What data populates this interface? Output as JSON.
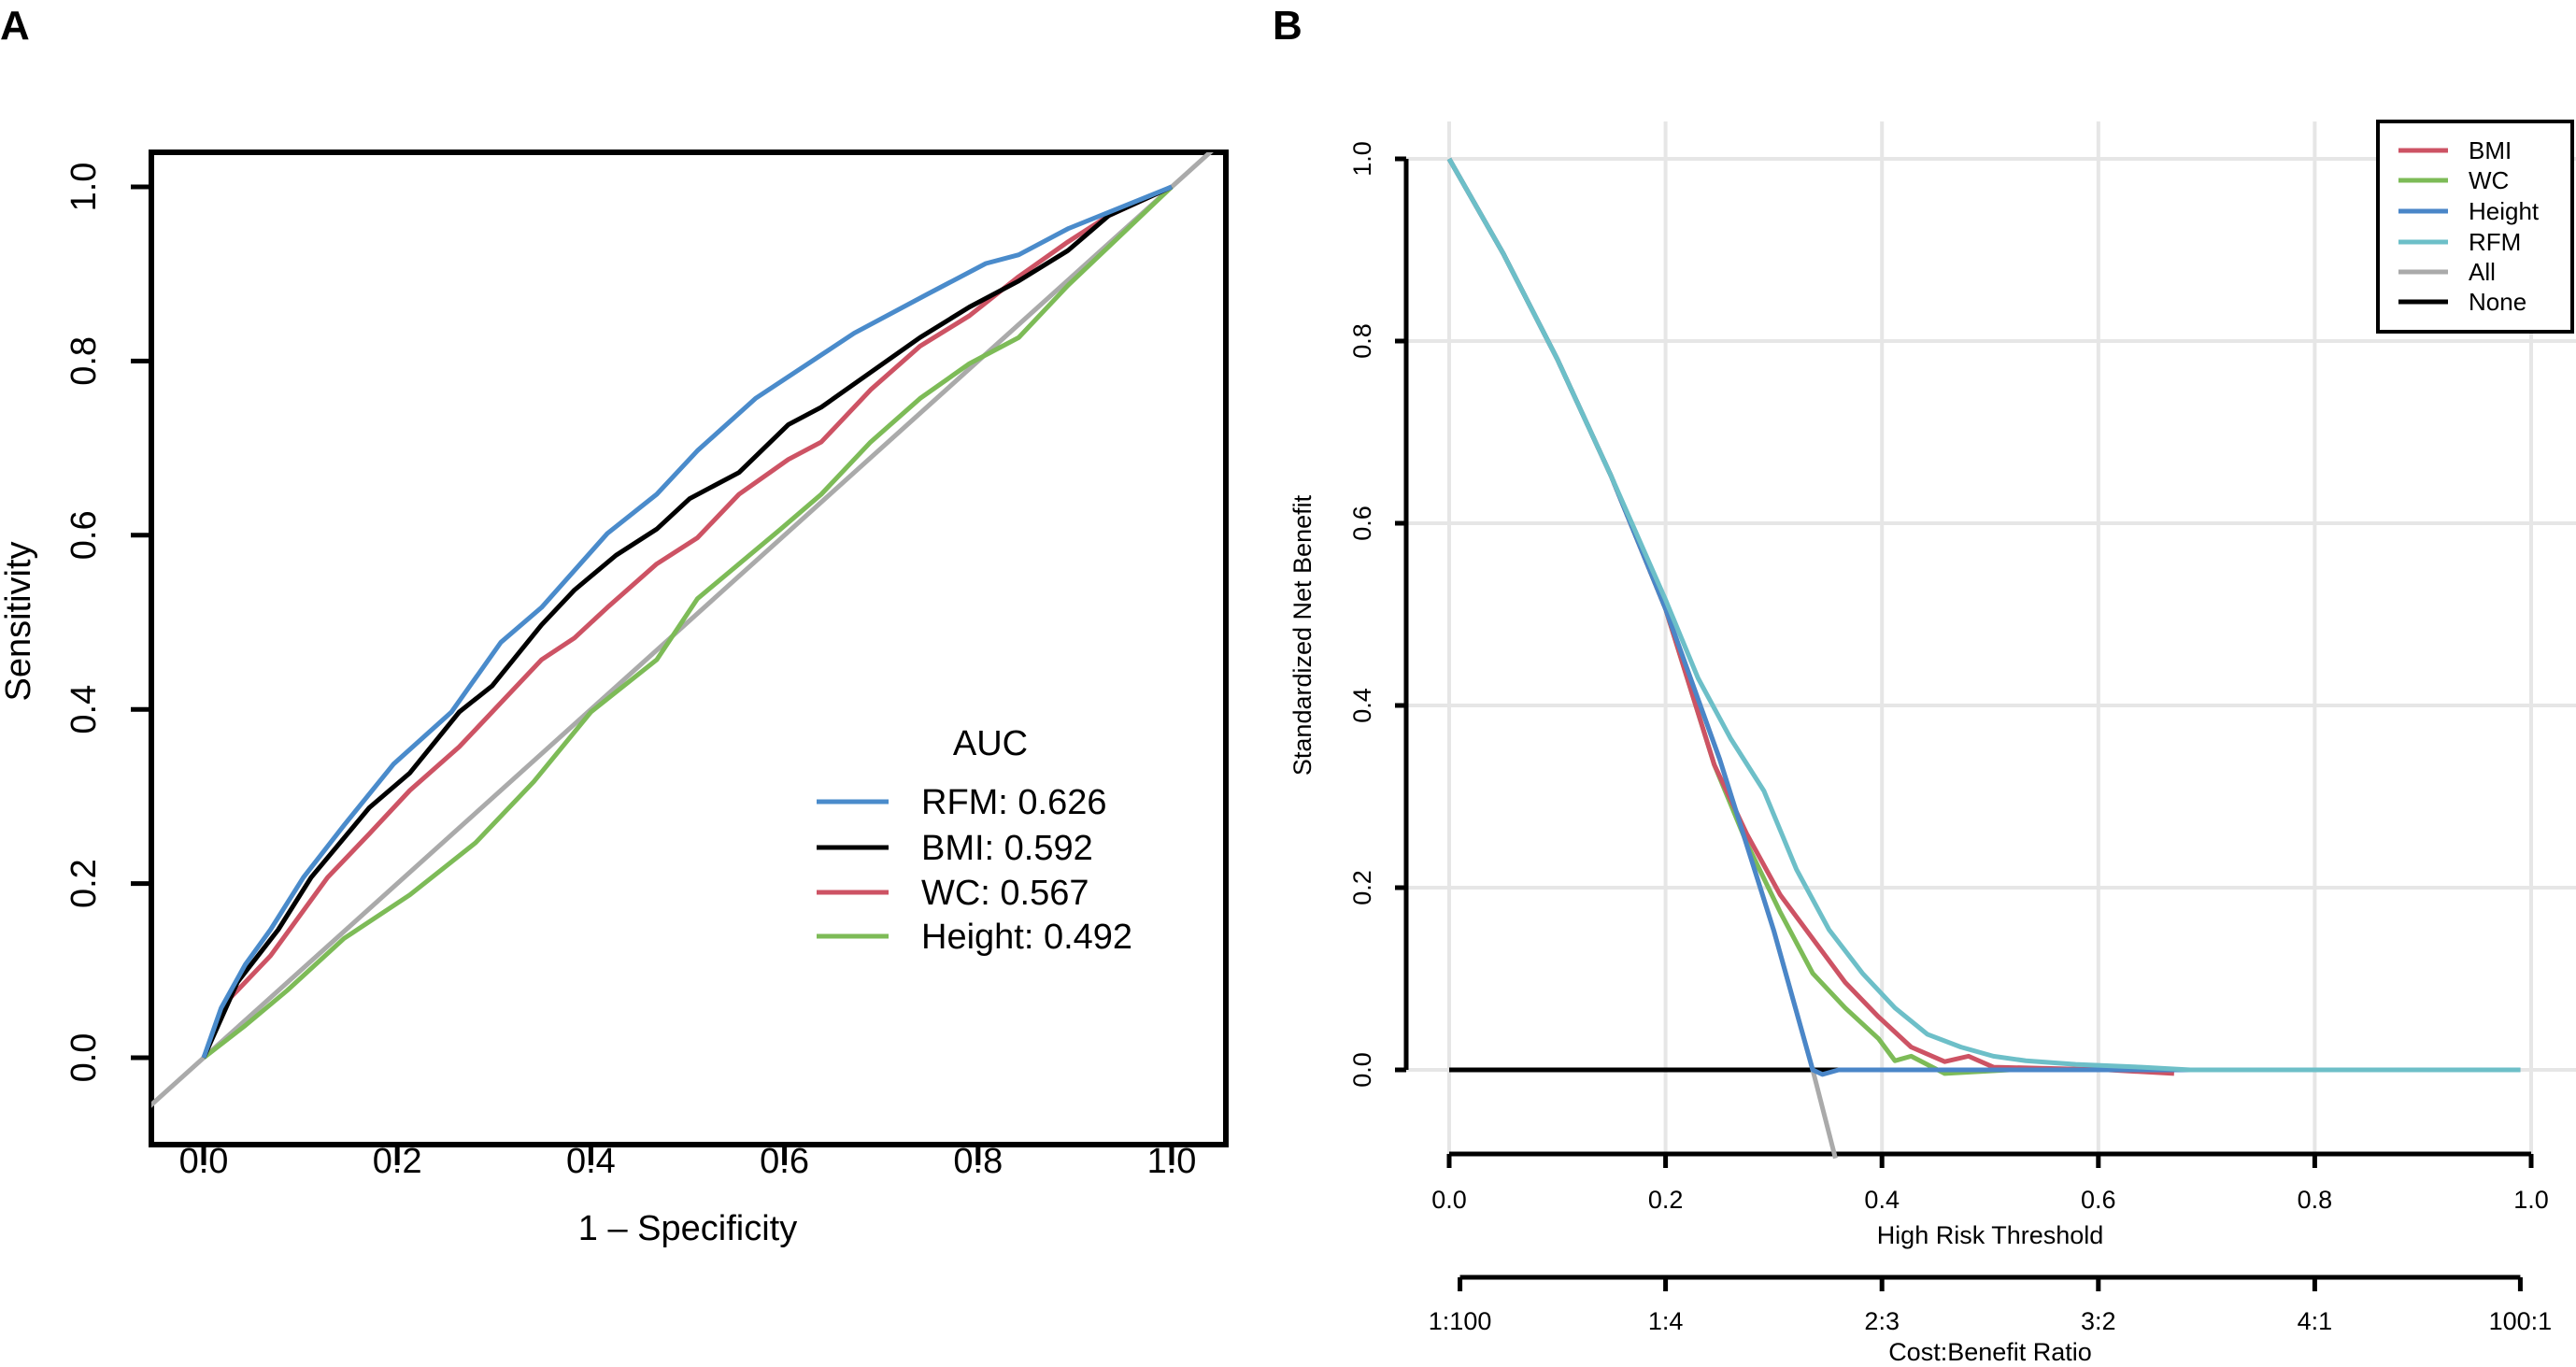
{
  "panels": {
    "a": "A",
    "b": "B"
  },
  "chart_data": [
    {
      "type": "line",
      "panel": "A",
      "xlabel": "1 – Specificity",
      "ylabel": "Sensitivity",
      "xlim": [
        0,
        1
      ],
      "ylim": [
        0,
        1
      ],
      "xticks": [
        "0.0",
        "0.2",
        "0.4",
        "0.6",
        "0.8",
        "1.0"
      ],
      "yticks": [
        "0.0",
        "0.2",
        "0.4",
        "0.6",
        "0.8",
        "1.0"
      ],
      "grid": false,
      "legend": {
        "title": "AUC",
        "placement": "bottom-right",
        "entries": [
          "RFM: 0.626",
          "BMI: 0.592",
          "WC: 0.567",
          "Height: 0.492"
        ]
      },
      "reference_line": {
        "type": "diagonal",
        "color": "#AAAAAA"
      },
      "series": [
        {
          "name": "RFM",
          "color": "#4A8BCB",
          "x": [
            0,
            0.018,
            0.043,
            0.069,
            0.103,
            0.145,
            0.196,
            0.256,
            0.307,
            0.349,
            0.417,
            0.468,
            0.51,
            0.57,
            0.638,
            0.672,
            0.748,
            0.808,
            0.842,
            0.893,
            1
          ],
          "y": [
            0,
            0.057,
            0.107,
            0.147,
            0.207,
            0.267,
            0.337,
            0.397,
            0.477,
            0.517,
            0.602,
            0.647,
            0.697,
            0.757,
            0.807,
            0.832,
            0.877,
            0.912,
            0.922,
            0.952,
            1
          ]
        },
        {
          "name": "BMI",
          "color": "#000000",
          "x": [
            0,
            0.035,
            0.077,
            0.111,
            0.171,
            0.213,
            0.264,
            0.298,
            0.349,
            0.383,
            0.426,
            0.468,
            0.502,
            0.553,
            0.604,
            0.638,
            0.689,
            0.74,
            0.791,
            0.842,
            0.893,
            0.935,
            1
          ],
          "y": [
            0,
            0.087,
            0.147,
            0.207,
            0.287,
            0.327,
            0.397,
            0.427,
            0.497,
            0.537,
            0.577,
            0.607,
            0.642,
            0.672,
            0.727,
            0.747,
            0.787,
            0.827,
            0.862,
            0.892,
            0.927,
            0.967,
            1
          ]
        },
        {
          "name": "WC",
          "color": "#CD5364",
          "x": [
            0,
            0.026,
            0.069,
            0.128,
            0.171,
            0.213,
            0.264,
            0.298,
            0.349,
            0.383,
            0.417,
            0.468,
            0.51,
            0.553,
            0.604,
            0.638,
            0.689,
            0.74,
            0.791,
            0.842,
            0.893,
            0.935,
            1
          ],
          "y": [
            0,
            0.067,
            0.117,
            0.207,
            0.257,
            0.307,
            0.357,
            0.397,
            0.457,
            0.482,
            0.517,
            0.567,
            0.597,
            0.647,
            0.687,
            0.707,
            0.767,
            0.817,
            0.852,
            0.897,
            0.937,
            0.967,
            1
          ]
        },
        {
          "name": "Height",
          "color": "#7DBB57",
          "x": [
            0,
            0.043,
            0.086,
            0.145,
            0.213,
            0.281,
            0.341,
            0.4,
            0.468,
            0.51,
            0.596,
            0.638,
            0.689,
            0.74,
            0.791,
            0.842,
            0.893,
            1
          ],
          "y": [
            0,
            0.037,
            0.077,
            0.137,
            0.187,
            0.247,
            0.317,
            0.397,
            0.457,
            0.527,
            0.607,
            0.647,
            0.707,
            0.757,
            0.797,
            0.827,
            0.887,
            1
          ]
        }
      ]
    },
    {
      "type": "line",
      "panel": "B",
      "xlabel": "High Risk Threshold",
      "ylabel": "Standardized Net Benefit",
      "x2label": "Cost:Benefit Ratio",
      "xlim": [
        0,
        1
      ],
      "ylim": [
        -0.1,
        1
      ],
      "xticks": [
        "0.0",
        "0.2",
        "0.4",
        "0.6",
        "0.8",
        "1.0"
      ],
      "x2ticks": [
        {
          "at": 0.01,
          "label": "1:100"
        },
        {
          "at": 0.2,
          "label": "1:4"
        },
        {
          "at": 0.4,
          "label": "2:3"
        },
        {
          "at": 0.6,
          "label": "3:2"
        },
        {
          "at": 0.8,
          "label": "4:1"
        },
        {
          "at": 0.99,
          "label": "100:1"
        }
      ],
      "yticks": [
        "0.0",
        "0.2",
        "0.4",
        "0.6",
        "0.8",
        "1.0"
      ],
      "grid": true,
      "legend": {
        "placement": "top-right"
      },
      "series": [
        {
          "name": "BMI",
          "color": "#CD5364",
          "x": [
            0,
            0.05,
            0.1,
            0.15,
            0.2,
            0.245,
            0.275,
            0.306,
            0.336,
            0.366,
            0.397,
            0.427,
            0.458,
            0.48,
            0.503,
            0.609,
            0.67
          ],
          "y": [
            1,
            0.896,
            0.78,
            0.651,
            0.506,
            0.335,
            0.259,
            0.192,
            0.144,
            0.096,
            0.058,
            0.025,
            0.009,
            0.015,
            0.003,
            0,
            -0.004
          ]
        },
        {
          "name": "WC",
          "color": "#7DBB57",
          "x": [
            0,
            0.05,
            0.1,
            0.15,
            0.2,
            0.245,
            0.275,
            0.306,
            0.336,
            0.366,
            0.397,
            0.412,
            0.427,
            0.458,
            0.533,
            0.65
          ],
          "y": [
            1,
            0.896,
            0.78,
            0.651,
            0.506,
            0.335,
            0.249,
            0.173,
            0.106,
            0.068,
            0.034,
            0.01,
            0.015,
            -0.004,
            0.001,
            0
          ]
        },
        {
          "name": "Height",
          "color": "#4A86C8",
          "x": [
            0,
            0.05,
            0.1,
            0.15,
            0.2,
            0.25,
            0.3,
            0.336,
            0.345,
            0.36,
            0.99
          ],
          "y": [
            1,
            0.896,
            0.78,
            0.651,
            0.506,
            0.341,
            0.153,
            0,
            -0.005,
            0,
            0
          ]
        },
        {
          "name": "RFM",
          "color": "#6DBFC8",
          "x": [
            0,
            0.05,
            0.1,
            0.15,
            0.2,
            0.23,
            0.26,
            0.291,
            0.321,
            0.351,
            0.382,
            0.412,
            0.442,
            0.473,
            0.503,
            0.533,
            0.579,
            0.64,
            0.685,
            0.99
          ],
          "y": [
            1,
            0.896,
            0.78,
            0.651,
            0.516,
            0.43,
            0.364,
            0.306,
            0.22,
            0.154,
            0.106,
            0.068,
            0.039,
            0.025,
            0.015,
            0.01,
            0.006,
            0.003,
            0,
            0
          ]
        },
        {
          "name": "All",
          "color": "#AAAAAA",
          "x": [
            0,
            0.05,
            0.1,
            0.15,
            0.2,
            0.25,
            0.3,
            0.336,
            0.357
          ],
          "y": [
            1,
            0.896,
            0.78,
            0.651,
            0.506,
            0.341,
            0.153,
            0,
            -0.097
          ]
        },
        {
          "name": "None",
          "color": "#000000",
          "x": [
            0,
            0.99
          ],
          "y": [
            0,
            0
          ]
        }
      ]
    }
  ]
}
